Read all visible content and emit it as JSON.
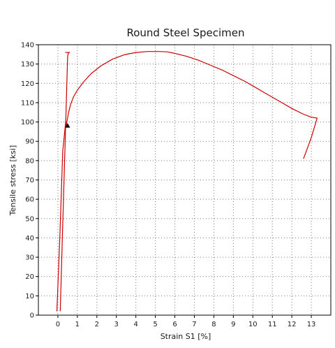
{
  "chart_data": {
    "type": "line",
    "title": "Round Steel Specimen",
    "xlabel": "Strain S1 [%]",
    "ylabel": "Tensile stress [ksi]",
    "xlim": [
      -1,
      14
    ],
    "ylim": [
      0,
      140
    ],
    "xticks": [
      "0",
      "1",
      "2",
      "3",
      "4",
      "5",
      "6",
      "7",
      "8",
      "9",
      "10",
      "11",
      "12",
      "13"
    ],
    "yticks": [
      "0",
      "10",
      "20",
      "30",
      "40",
      "50",
      "60",
      "70",
      "80",
      "90",
      "100",
      "110",
      "120",
      "130",
      "140"
    ],
    "grid": true,
    "series_color": "#cc0000",
    "series": [
      {
        "x": [
          -0.05,
          0.1,
          0.25,
          0.4,
          0.42,
          0.48,
          0.55,
          0.65,
          0.8,
          1.0,
          1.3,
          1.7,
          2.2,
          2.8,
          3.4,
          4.0,
          4.6,
          5.2,
          5.6,
          6.0,
          6.6,
          7.2,
          7.8,
          8.4,
          9.0,
          9.6,
          10.2,
          10.8,
          11.4,
          12.0,
          12.6,
          13.0,
          13.3,
          13.0,
          12.6
        ],
        "y": [
          2,
          40,
          85,
          100,
          98,
          101,
          105,
          109,
          113,
          116.5,
          120.5,
          125,
          129,
          132.5,
          134.8,
          136,
          136.5,
          136.5,
          136.3,
          135.5,
          134,
          132,
          129.5,
          127,
          124,
          121,
          117.5,
          114,
          110.5,
          107,
          104,
          102.5,
          102,
          92,
          81
        ]
      },
      {
        "x": [
          0.12,
          0.5,
          0.55
        ],
        "y": [
          2,
          134,
          136
        ]
      },
      {
        "x": [
          0.38,
          0.62
        ],
        "y": [
          136,
          136
        ]
      }
    ],
    "marker": {
      "x": 0.5,
      "y": 98,
      "shape": "triangle",
      "color": "#000000"
    }
  }
}
